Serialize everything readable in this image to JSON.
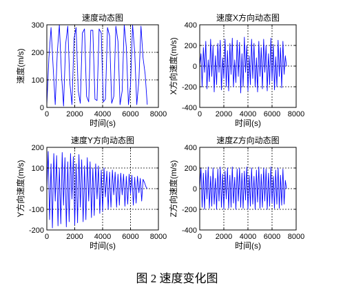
{
  "caption": "图 2  速度变化图",
  "chart_data": [
    {
      "type": "line",
      "title": "速度动态图",
      "xlabel": "时间(s)",
      "ylabel": "速度(m/s)",
      "xlim": [
        0,
        8000
      ],
      "ylim": [
        0,
        300
      ],
      "xticks": [
        0,
        2000,
        4000,
        6000,
        8000
      ],
      "yticks": [
        0,
        100,
        200,
        300
      ],
      "grid": true,
      "series": [
        {
          "color": "#0000ff",
          "x": [
            0,
            150,
            300,
            450,
            600,
            750,
            900,
            1050,
            1200,
            1350,
            1500,
            1650,
            1800,
            1950,
            2100,
            2250,
            2400,
            2550,
            2700,
            2850,
            3000,
            3150,
            3300,
            3450,
            3600,
            3750,
            3900,
            4050,
            4200,
            4350,
            4500,
            4650,
            4800,
            4950,
            5100,
            5250,
            5400,
            5550,
            5700,
            5850,
            6000,
            6150,
            6300,
            6450,
            6600,
            6750,
            6900,
            7050,
            7200
          ],
          "y": [
            10,
            180,
            290,
            150,
            10,
            200,
            300,
            120,
            5,
            230,
            295,
            90,
            10,
            250,
            290,
            60,
            15,
            270,
            285,
            40,
            20,
            280,
            280,
            30,
            25,
            285,
            270,
            20,
            30,
            290,
            260,
            15,
            40,
            295,
            240,
            10,
            60,
            300,
            220,
            10,
            80,
            300,
            200,
            10,
            100,
            295,
            180,
            120,
            10
          ]
        }
      ]
    },
    {
      "type": "line",
      "title": "速度X方向动态图",
      "xlabel": "时间(s)",
      "ylabel": "X方向速度(m/s)",
      "xlim": [
        0,
        8000
      ],
      "ylim": [
        -400,
        400
      ],
      "xticks": [
        0,
        2000,
        4000,
        6000,
        8000
      ],
      "yticks": [
        -400,
        -200,
        0,
        200,
        400
      ],
      "grid": true,
      "series": [
        {
          "color": "#0000ff",
          "x": [
            0,
            100,
            200,
            300,
            400,
            500,
            600,
            700,
            800,
            900,
            1000,
            1100,
            1200,
            1300,
            1400,
            1500,
            1600,
            1700,
            1800,
            1900,
            2000,
            2100,
            2200,
            2300,
            2400,
            2500,
            2600,
            2700,
            2800,
            2900,
            3000,
            3100,
            3200,
            3300,
            3400,
            3500,
            3600,
            3700,
            3800,
            3900,
            4000,
            4100,
            4200,
            4300,
            4400,
            4500,
            4600,
            4700,
            4800,
            4900,
            5000,
            5100,
            5200,
            5300,
            5400,
            5500,
            5600,
            5700,
            5800,
            5900,
            6000,
            6100,
            6200,
            6300,
            6400,
            6500,
            6600,
            6700,
            6800,
            6900,
            7000,
            7100,
            7200
          ],
          "y": [
            0,
            120,
            -200,
            180,
            -60,
            240,
            -220,
            60,
            -150,
            260,
            -100,
            200,
            -250,
            100,
            -180,
            220,
            -60,
            250,
            -230,
            80,
            -120,
            260,
            -200,
            150,
            -240,
            220,
            -80,
            270,
            -200,
            60,
            -160,
            250,
            -100,
            230,
            -260,
            120,
            -200,
            280,
            -60,
            200,
            -240,
            100,
            -180,
            260,
            -120,
            220,
            -200,
            80,
            -250,
            240,
            -100,
            180,
            -220,
            260,
            -60,
            200,
            -240,
            120,
            -180,
            270,
            -140,
            210,
            -230,
            90,
            -200,
            250,
            -100,
            180,
            -210,
            240,
            -80,
            100,
            0
          ]
        }
      ]
    },
    {
      "type": "line",
      "title": "速度Y方向动态图",
      "xlabel": "时间(s)",
      "ylabel": "Y方向速度(m/s)",
      "xlim": [
        0,
        8000
      ],
      "ylim": [
        -200,
        200
      ],
      "xticks": [
        0,
        2000,
        4000,
        6000,
        8000
      ],
      "yticks": [
        -200,
        -100,
        0,
        100,
        200
      ],
      "grid": true,
      "series": [
        {
          "color": "#0000ff",
          "x": [
            0,
            100,
            200,
            300,
            400,
            500,
            600,
            700,
            800,
            900,
            1000,
            1100,
            1200,
            1300,
            1400,
            1500,
            1600,
            1700,
            1800,
            1900,
            2000,
            2100,
            2200,
            2300,
            2400,
            2500,
            2600,
            2700,
            2800,
            2900,
            3000,
            3100,
            3200,
            3300,
            3400,
            3500,
            3600,
            3700,
            3800,
            3900,
            4000,
            4100,
            4200,
            4300,
            4400,
            4500,
            4600,
            4700,
            4800,
            4900,
            5000,
            5100,
            5200,
            5300,
            5400,
            5500,
            5600,
            5700,
            5800,
            5900,
            6000,
            6100,
            6200,
            6300,
            6400,
            6500,
            6600,
            6700,
            6800,
            6900,
            7000,
            7100,
            7200
          ],
          "y": [
            0,
            180,
            -150,
            120,
            -190,
            170,
            -60,
            160,
            -180,
            100,
            -170,
            175,
            -80,
            150,
            -185,
            130,
            -160,
            170,
            -50,
            155,
            -175,
            120,
            -165,
            165,
            -90,
            140,
            -160,
            110,
            -150,
            150,
            -60,
            130,
            -140,
            100,
            -130,
            120,
            -50,
            110,
            -120,
            90,
            -110,
            100,
            -40,
            85,
            -100,
            80,
            -90,
            90,
            -30,
            80,
            -90,
            70,
            -80,
            75,
            -30,
            70,
            -85,
            60,
            -75,
            70,
            -25,
            65,
            -80,
            55,
            -70,
            60,
            -20,
            50,
            -60,
            45,
            30,
            10,
            0
          ]
        }
      ]
    },
    {
      "type": "line",
      "title": "速度Z方向动态图",
      "xlabel": "时间(s)",
      "ylabel": "Z方向速度(m/s)",
      "xlim": [
        0,
        8000
      ],
      "ylim": [
        -400,
        400
      ],
      "xticks": [
        0,
        2000,
        4000,
        6000,
        8000
      ],
      "yticks": [
        -400,
        -200,
        0,
        200,
        400
      ],
      "grid": true,
      "series": [
        {
          "color": "#0000ff",
          "x": [
            0,
            100,
            200,
            300,
            400,
            500,
            600,
            700,
            800,
            900,
            1000,
            1100,
            1200,
            1300,
            1400,
            1500,
            1600,
            1700,
            1800,
            1900,
            2000,
            2100,
            2200,
            2300,
            2400,
            2500,
            2600,
            2700,
            2800,
            2900,
            3000,
            3100,
            3200,
            3300,
            3400,
            3500,
            3600,
            3700,
            3800,
            3900,
            4000,
            4100,
            4200,
            4300,
            4400,
            4500,
            4600,
            4700,
            4800,
            4900,
            5000,
            5100,
            5200,
            5300,
            5400,
            5500,
            5600,
            5700,
            5800,
            5900,
            6000,
            6100,
            6200,
            6300,
            6400,
            6500,
            6600,
            6700,
            6800,
            6900,
            7000,
            7100,
            7200
          ],
          "y": [
            0,
            200,
            -180,
            150,
            -200,
            180,
            -100,
            210,
            -190,
            120,
            -170,
            200,
            -150,
            100,
            -200,
            190,
            -120,
            210,
            -180,
            140,
            -200,
            170,
            -100,
            200,
            -190,
            130,
            -180,
            210,
            -140,
            110,
            -200,
            190,
            -120,
            200,
            -180,
            150,
            -190,
            170,
            -110,
            210,
            -200,
            130,
            -170,
            200,
            -150,
            120,
            -200,
            180,
            -130,
            210,
            -190,
            140,
            -180,
            200,
            -120,
            190,
            -200,
            150,
            -170,
            210,
            -140,
            120,
            -190,
            180,
            -150,
            200,
            -190,
            130,
            -160,
            190,
            -150,
            80,
            0
          ]
        }
      ]
    }
  ]
}
